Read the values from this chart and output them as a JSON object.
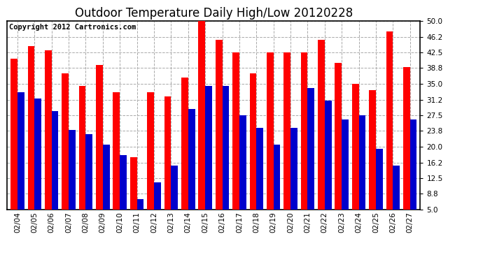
{
  "title": "Outdoor Temperature Daily High/Low 20120228",
  "copyright": "Copyright 2012 Cartronics.com",
  "dates": [
    "02/04",
    "02/05",
    "02/06",
    "02/07",
    "02/08",
    "02/09",
    "02/10",
    "02/11",
    "02/12",
    "02/13",
    "02/14",
    "02/15",
    "02/16",
    "02/17",
    "02/18",
    "02/19",
    "02/20",
    "02/21",
    "02/22",
    "02/23",
    "02/24",
    "02/25",
    "02/26",
    "02/27"
  ],
  "highs": [
    41.0,
    44.0,
    43.0,
    37.5,
    34.5,
    39.5,
    33.0,
    17.5,
    33.0,
    32.0,
    36.5,
    50.0,
    45.5,
    42.5,
    37.5,
    42.5,
    42.5,
    42.5,
    45.5,
    40.0,
    35.0,
    33.5,
    47.5,
    39.0
  ],
  "lows": [
    33.0,
    31.5,
    28.5,
    24.0,
    23.0,
    20.5,
    18.0,
    7.5,
    11.5,
    15.5,
    29.0,
    34.5,
    34.5,
    27.5,
    24.5,
    20.5,
    24.5,
    34.0,
    31.0,
    26.5,
    27.5,
    19.5,
    15.5,
    26.5
  ],
  "high_color": "#ff0000",
  "low_color": "#0000cc",
  "bg_color": "#ffffff",
  "plot_bg_color": "#ffffff",
  "grid_color": "#aaaaaa",
  "ylim": [
    5.0,
    50.0
  ],
  "yticks": [
    5.0,
    8.8,
    12.5,
    16.2,
    20.0,
    23.8,
    27.5,
    31.2,
    35.0,
    38.8,
    42.5,
    46.2,
    50.0
  ],
  "title_fontsize": 12,
  "copyright_fontsize": 7.5,
  "bar_width": 0.4
}
